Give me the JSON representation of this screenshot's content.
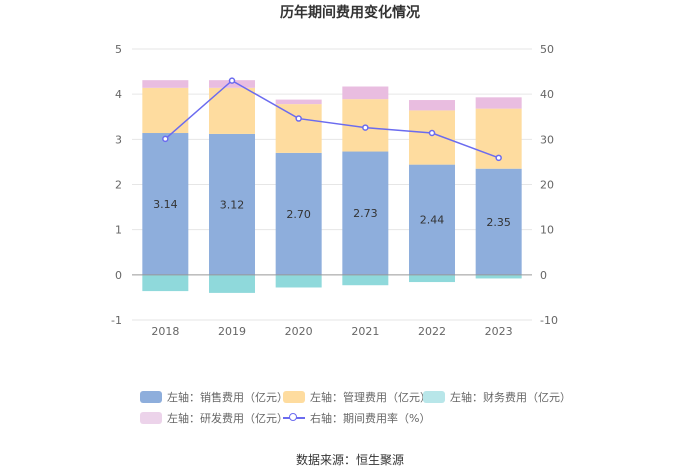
{
  "chart_data": {
    "type": "bar",
    "title": "历年期间费用变化情况",
    "categories": [
      "2018",
      "2019",
      "2020",
      "2021",
      "2022",
      "2023"
    ],
    "left_axis": {
      "min": -1,
      "max": 5,
      "ticks": [
        "5",
        "4",
        "3",
        "2",
        "1",
        "0",
        "-1"
      ]
    },
    "right_axis": {
      "min": -10,
      "max": 50,
      "ticks": [
        "50",
        "40",
        "30",
        "20",
        "10",
        "0",
        "-10"
      ]
    },
    "series": [
      {
        "name": "左轴：销售费用（亿元）",
        "axis": "left",
        "kind": "stack-bar",
        "color": "#8eaedc",
        "values": [
          3.14,
          3.12,
          2.7,
          2.73,
          2.44,
          2.35
        ],
        "labels": [
          "3.14",
          "3.12",
          "2.70",
          "2.73",
          "2.44",
          "2.35"
        ]
      },
      {
        "name": "左轴：管理费用（亿元）",
        "axis": "left",
        "kind": "stack-bar",
        "color": "#fedc9f",
        "values": [
          1.0,
          1.02,
          1.08,
          1.16,
          1.2,
          1.33
        ]
      },
      {
        "name": "左轴：财务费用（亿元）",
        "axis": "left",
        "kind": "stack-bar",
        "color": "#8fd9db",
        "values": [
          -0.36,
          -0.4,
          -0.28,
          -0.23,
          -0.16,
          -0.08
        ]
      },
      {
        "name": "左轴：研发费用（亿元）",
        "axis": "left",
        "kind": "stack-bar",
        "color": "#e9bde0",
        "values": [
          0.17,
          0.17,
          0.1,
          0.28,
          0.23,
          0.25
        ]
      },
      {
        "name": "右轴：期间费用率（%）",
        "axis": "right",
        "kind": "line",
        "color": "#6b6bef",
        "values": [
          30.1,
          43.0,
          34.6,
          32.6,
          31.4,
          25.9
        ]
      }
    ]
  },
  "legend": {
    "sales": "左轴：销售费用（亿元）",
    "admin": "左轴：管理费用（亿元）",
    "finance": "左轴：财务费用（亿元）",
    "rd": "左轴：研发费用（亿元）",
    "rate": "右轴：期间费用率（%）"
  },
  "colors": {
    "sales": "#8eaedc",
    "admin": "#fedc9f",
    "finance": "#8fd9db",
    "rd": "#e9bde0",
    "rate": "#6b6bef"
  },
  "source": "数据来源：恒生聚源"
}
